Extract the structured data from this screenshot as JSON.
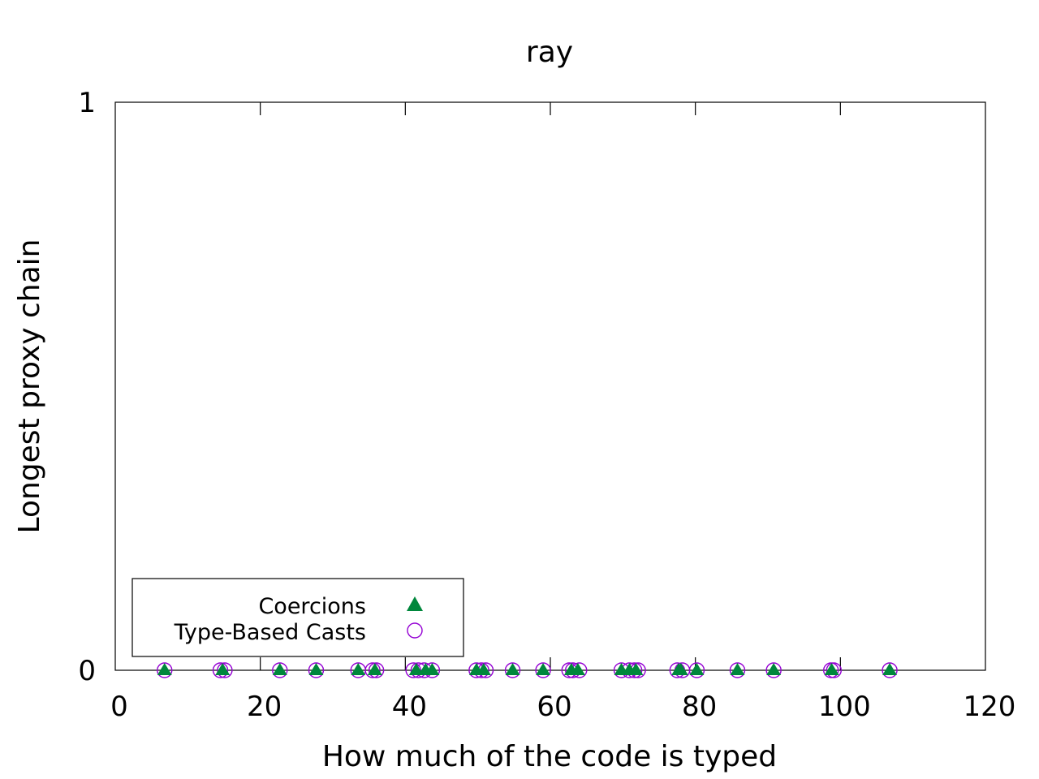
{
  "chart_data": {
    "type": "scatter",
    "title": "ray",
    "xlabel": "How much of the code is typed",
    "ylabel": "Longest proxy chain",
    "xlim": [
      0,
      120
    ],
    "ylim": [
      0,
      1
    ],
    "x_ticks": [
      "0",
      "20",
      "40",
      "60",
      "80",
      "100",
      "120"
    ],
    "y_ticks": [
      "0",
      "1"
    ],
    "grid": false,
    "legend_position": "bottom-left",
    "series": [
      {
        "name": "Coercions",
        "marker": "filled-triangle",
        "color": "#00873c",
        "x": [
          6.8,
          14.8,
          22.7,
          27.7,
          33.5,
          35.8,
          41.5,
          42.8,
          43.7,
          49.8,
          50.8,
          54.8,
          59.0,
          62.9,
          63.8,
          69.8,
          70.9,
          71.8,
          77.7,
          78.0,
          80.2,
          85.8,
          90.8,
          98.8,
          106.8
        ],
        "y": [
          0,
          0,
          0,
          0,
          0,
          0,
          0,
          0,
          0,
          0,
          0,
          0,
          0,
          0,
          0,
          0,
          0,
          0,
          0,
          0,
          0,
          0,
          0,
          0,
          0
        ]
      },
      {
        "name": "Type-Based Casts",
        "marker": "open-circle",
        "color": "#9400d3",
        "x": [
          6.8,
          14.5,
          15.1,
          22.7,
          27.7,
          33.5,
          35.5,
          36.0,
          41.1,
          41.8,
          42.6,
          43.7,
          49.8,
          50.5,
          51.1,
          54.8,
          59.0,
          62.6,
          63.1,
          64.0,
          69.8,
          70.9,
          71.6,
          72.1,
          77.5,
          78.2,
          80.2,
          85.8,
          90.8,
          98.7,
          99.1,
          106.8
        ],
        "y": [
          0,
          0,
          0,
          0,
          0,
          0,
          0,
          0,
          0,
          0,
          0,
          0,
          0,
          0,
          0,
          0,
          0,
          0,
          0,
          0,
          0,
          0,
          0,
          0,
          0,
          0,
          0,
          0,
          0,
          0,
          0,
          0
        ]
      }
    ]
  }
}
